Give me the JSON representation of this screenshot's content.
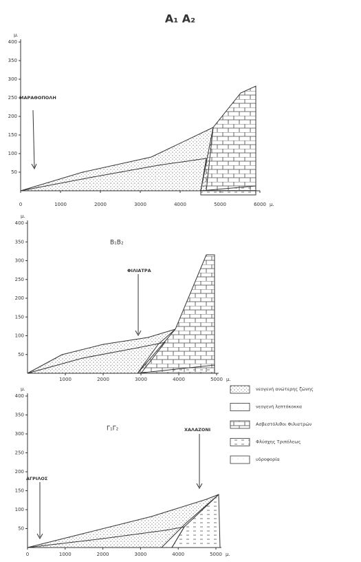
{
  "figure": {
    "title": "A₁ A₂",
    "panels": [
      {
        "title": null,
        "unit": "μ.",
        "yticks": [
          50,
          100,
          150,
          200,
          250,
          300,
          350,
          400
        ],
        "xticks": [
          0,
          1000,
          2000,
          3000,
          4000,
          5000,
          6000
        ],
        "places": [
          "ΜΑΡΑΘΟΠΟΛΗ"
        ]
      },
      {
        "title": "Β₁Β₂",
        "unit": "μ.",
        "yticks": [
          50,
          100,
          150,
          200,
          250,
          300,
          350,
          400
        ],
        "xticks": [
          1000,
          2000,
          3000,
          4000,
          5000
        ],
        "places": [
          "ΦΙΛΙΑΤΡΑ"
        ]
      },
      {
        "title": "Γ₁Γ₂",
        "unit": "μ.",
        "yticks": [
          50,
          100,
          150,
          200,
          250,
          300,
          350,
          400
        ],
        "xticks": [
          0,
          1000,
          2000,
          3000,
          4000,
          5000
        ],
        "places": [
          "ΑΓΡΙΛΟΣ",
          "ΧΑΛΑΖΟΝΙ"
        ]
      }
    ],
    "legend": [
      "νεογενή ανώτερης ζώνης",
      "νεογενή λεπτόκοκκα",
      "Ασβεστόλιθοι Φιλιατρών",
      "Φλύσχης Τριπόλεως",
      "υδροφορία"
    ]
  }
}
